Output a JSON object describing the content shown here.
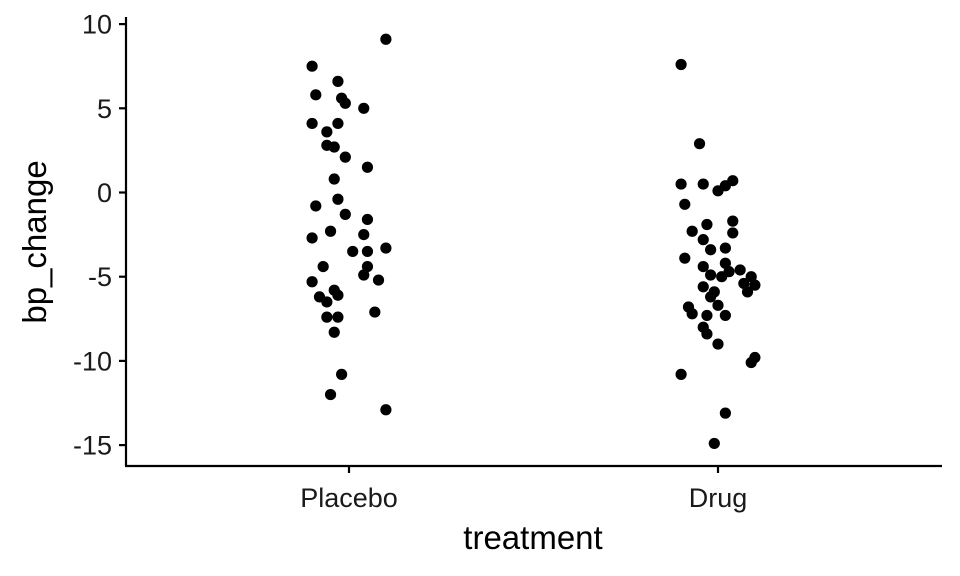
{
  "chart_data": {
    "type": "scatter",
    "subtype": "jitter strip plot",
    "xlabel": "treatment",
    "ylabel": "bp_change",
    "categories": [
      "Placebo",
      "Drug"
    ],
    "yticks": [
      10,
      5,
      0,
      -5,
      -10,
      -15
    ],
    "ytick_labels": [
      "10",
      "5",
      "0",
      "-5",
      "-10",
      "-15"
    ],
    "ylim": [
      -16.1,
      10.1
    ],
    "grid": false,
    "legend": "none",
    "point_color": "#000000",
    "series": [
      {
        "category": "Placebo",
        "points": [
          {
            "j": 0.1,
            "y": 9.1
          },
          {
            "j": -0.1,
            "y": 7.5
          },
          {
            "j": -0.03,
            "y": 6.6
          },
          {
            "j": -0.09,
            "y": 5.8
          },
          {
            "j": -0.02,
            "y": 5.6
          },
          {
            "j": -0.01,
            "y": 5.3
          },
          {
            "j": 0.04,
            "y": 5.0
          },
          {
            "j": -0.1,
            "y": 4.1
          },
          {
            "j": -0.03,
            "y": 4.1
          },
          {
            "j": -0.06,
            "y": 3.6
          },
          {
            "j": -0.06,
            "y": 2.8
          },
          {
            "j": -0.04,
            "y": 2.7
          },
          {
            "j": -0.01,
            "y": 2.1
          },
          {
            "j": 0.05,
            "y": 1.5
          },
          {
            "j": -0.04,
            "y": 0.8
          },
          {
            "j": -0.03,
            "y": -0.4
          },
          {
            "j": -0.09,
            "y": -0.8
          },
          {
            "j": -0.01,
            "y": -1.3
          },
          {
            "j": 0.05,
            "y": -1.6
          },
          {
            "j": -0.05,
            "y": -2.3
          },
          {
            "j": 0.04,
            "y": -2.5
          },
          {
            "j": -0.1,
            "y": -2.7
          },
          {
            "j": 0.1,
            "y": -3.3
          },
          {
            "j": 0.01,
            "y": -3.5
          },
          {
            "j": 0.05,
            "y": -3.5
          },
          {
            "j": -0.07,
            "y": -4.4
          },
          {
            "j": 0.05,
            "y": -4.4
          },
          {
            "j": 0.04,
            "y": -4.9
          },
          {
            "j": 0.08,
            "y": -5.2
          },
          {
            "j": -0.1,
            "y": -5.3
          },
          {
            "j": -0.04,
            "y": -5.8
          },
          {
            "j": -0.08,
            "y": -6.2
          },
          {
            "j": -0.03,
            "y": -6.1
          },
          {
            "j": -0.06,
            "y": -6.5
          },
          {
            "j": 0.07,
            "y": -7.1
          },
          {
            "j": -0.06,
            "y": -7.4
          },
          {
            "j": -0.03,
            "y": -7.4
          },
          {
            "j": -0.04,
            "y": -8.3
          },
          {
            "j": -0.02,
            "y": -10.8
          },
          {
            "j": -0.05,
            "y": -12.0
          },
          {
            "j": 0.1,
            "y": -12.9
          }
        ]
      },
      {
        "category": "Drug",
        "points": [
          {
            "j": -0.1,
            "y": 7.6
          },
          {
            "j": -0.05,
            "y": 2.9
          },
          {
            "j": 0.04,
            "y": 0.7
          },
          {
            "j": -0.1,
            "y": 0.5
          },
          {
            "j": -0.04,
            "y": 0.5
          },
          {
            "j": 0.02,
            "y": 0.4
          },
          {
            "j": 0.0,
            "y": 0.1
          },
          {
            "j": -0.09,
            "y": -0.7
          },
          {
            "j": -0.03,
            "y": -1.9
          },
          {
            "j": 0.04,
            "y": -1.7
          },
          {
            "j": -0.07,
            "y": -2.3
          },
          {
            "j": -0.04,
            "y": -2.8
          },
          {
            "j": 0.04,
            "y": -2.4
          },
          {
            "j": 0.02,
            "y": -3.3
          },
          {
            "j": -0.02,
            "y": -3.4
          },
          {
            "j": -0.09,
            "y": -3.9
          },
          {
            "j": 0.02,
            "y": -4.2
          },
          {
            "j": -0.04,
            "y": -4.4
          },
          {
            "j": 0.03,
            "y": -4.7
          },
          {
            "j": 0.06,
            "y": -4.6
          },
          {
            "j": -0.02,
            "y": -4.9
          },
          {
            "j": 0.01,
            "y": -5.0
          },
          {
            "j": 0.09,
            "y": -5.0
          },
          {
            "j": 0.07,
            "y": -5.4
          },
          {
            "j": -0.04,
            "y": -5.6
          },
          {
            "j": 0.1,
            "y": -5.5
          },
          {
            "j": -0.01,
            "y": -5.9
          },
          {
            "j": 0.08,
            "y": -5.9
          },
          {
            "j": -0.02,
            "y": -6.2
          },
          {
            "j": -0.08,
            "y": -6.8
          },
          {
            "j": 0.0,
            "y": -6.7
          },
          {
            "j": -0.07,
            "y": -7.2
          },
          {
            "j": -0.03,
            "y": -7.3
          },
          {
            "j": 0.02,
            "y": -7.3
          },
          {
            "j": -0.04,
            "y": -8.0
          },
          {
            "j": -0.03,
            "y": -8.4
          },
          {
            "j": 0.0,
            "y": -9.0
          },
          {
            "j": 0.1,
            "y": -9.8
          },
          {
            "j": 0.09,
            "y": -10.1
          },
          {
            "j": -0.1,
            "y": -10.8
          },
          {
            "j": 0.02,
            "y": -13.1
          },
          {
            "j": -0.01,
            "y": -14.9
          }
        ]
      }
    ]
  }
}
